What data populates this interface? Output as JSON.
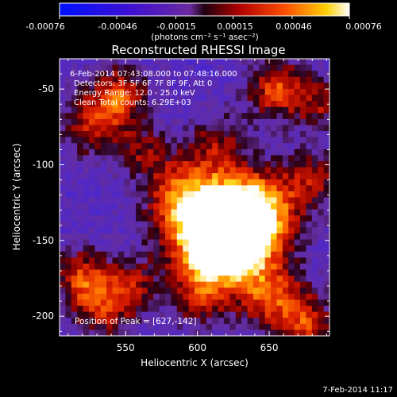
{
  "colorbar": {
    "ticks": [
      "-0.00076",
      "-0.00046",
      "-0.00015",
      "0.00015",
      "0.00046",
      "0.00076"
    ],
    "label": "(photons cm⁻² s⁻¹ asec⁻²)",
    "range": [
      -0.00076,
      0.00076
    ]
  },
  "annotations": {
    "time": "6-Feb-2014 07:43:08.000 to 07:48:16.000",
    "detectors": "Detectors: 3F 5F 6F 7F 8F 9F, Att 0",
    "energy": "Energy Range: 12.0 - 25.0 keV",
    "clean": "Clean     Total counts: 6.29E+03",
    "peak": "Position of Peak = [627,-142]"
  },
  "footer": {
    "date": "7-Feb-2014 11:17"
  },
  "colors": {
    "background": "#000000",
    "foreground": "#ffffff"
  },
  "chart_data": {
    "type": "heatmap",
    "title": "Reconstructed RHESSI Image",
    "xlabel": "Heliocentric X (arcsec)",
    "ylabel": "Heliocentric Y (arcsec)",
    "xlim": [
      504,
      692
    ],
    "ylim": [
      -213,
      -30
    ],
    "xticks": [
      550,
      600,
      650
    ],
    "yticks": [
      -50,
      -100,
      -150,
      -200
    ],
    "peak": {
      "x": 627,
      "y": -142
    },
    "colormap": "blue-purple-red-yellow-white",
    "grid": false
  }
}
